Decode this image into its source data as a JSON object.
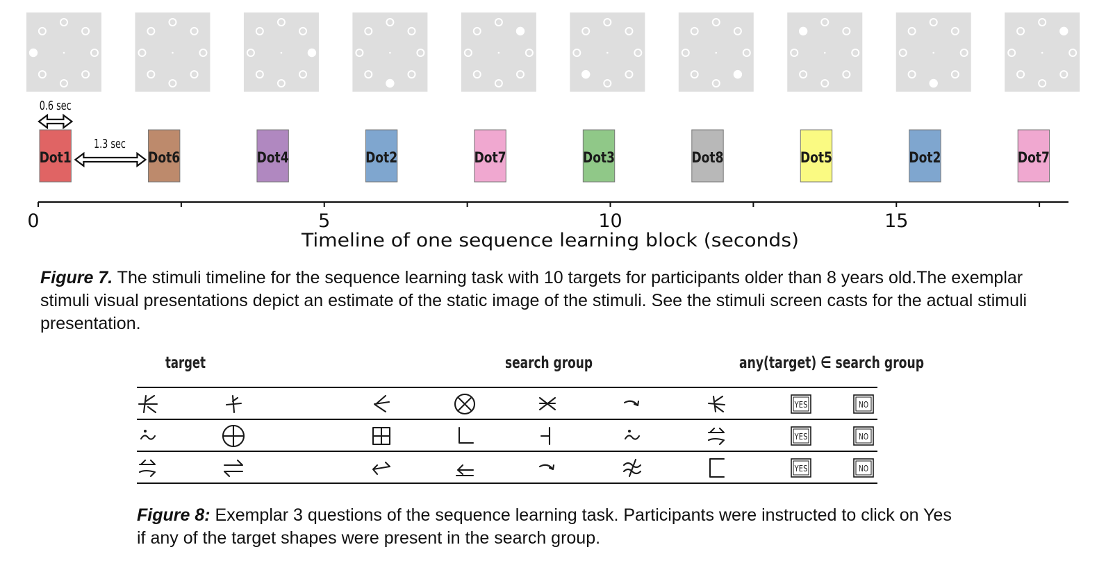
{
  "figure7": {
    "chart_data": {
      "type": "timeline",
      "xlabel": "Timeline of one sequence learning block (seconds)",
      "xlim": [
        0,
        18
      ],
      "xticks": [
        0,
        5,
        10,
        15
      ],
      "events": [
        {
          "label": "Dot1",
          "start": 0.0,
          "end": 0.6,
          "color": "#e06464"
        },
        {
          "label": "Dot6",
          "start": 1.9,
          "end": 2.5,
          "color": "#bd8a6c"
        },
        {
          "label": "Dot4",
          "start": 3.8,
          "end": 4.4,
          "color": "#b088c0"
        },
        {
          "label": "Dot2",
          "start": 5.7,
          "end": 6.3,
          "color": "#7fa6cf"
        },
        {
          "label": "Dot7",
          "start": 7.6,
          "end": 8.2,
          "color": "#f0a8d0"
        },
        {
          "label": "Dot3",
          "start": 9.5,
          "end": 10.1,
          "color": "#90c888"
        },
        {
          "label": "Dot8",
          "start": 11.4,
          "end": 12.0,
          "color": "#b8b8b8"
        },
        {
          "label": "Dot5",
          "start": 13.3,
          "end": 13.9,
          "color": "#fafa82"
        },
        {
          "label": "Dot2",
          "start": 15.2,
          "end": 15.8,
          "color": "#7fa6cf"
        },
        {
          "label": "Dot7",
          "start": 17.1,
          "end": 17.7,
          "color": "#f0a8d0"
        }
      ],
      "annotations": [
        "0.6 sec",
        "1.3 sec"
      ]
    },
    "stimuli": [
      {
        "dot": 6
      },
      {
        "dot": 8
      },
      {
        "dot": 2
      },
      {
        "dot": 4
      },
      {
        "dot": 1
      },
      {
        "dot": 5
      },
      {
        "dot": 3
      },
      {
        "dot": 7
      },
      {
        "dot": 4
      },
      {
        "dot": 1
      }
    ]
  },
  "caption7": {
    "label": "Figure 7.",
    "text": " The stimuli timeline for the sequence learning task with 10 targets for participants older than 8 years old.The exemplar stimuli visual presentations depict an estimate of the static image of the stimuli. See the stimuli screen casts for the actual stimuli presentation."
  },
  "figure8": {
    "headers": {
      "target": "target",
      "search": "search group",
      "answer": "any(target) ∈ search group"
    },
    "yes_label": "YES",
    "no_label": "NO",
    "rows": [
      [
        "sym-a",
        "sym-b",
        "sym-c",
        "circle-x",
        "sym-x",
        "arrow-hook",
        "sym-a2"
      ],
      [
        "tilde-dot",
        "circle-plus",
        "square-plus",
        "corner-l",
        "tack-left",
        "tilde-dot",
        "arrows-r"
      ],
      [
        "arrows-r",
        "arrows-lr",
        "arrow-bent",
        "arrow-back",
        "arrow-hook",
        "approx-slash",
        "bracket-open"
      ]
    ]
  },
  "caption8": {
    "label": "Figure 8:",
    "text": " Exemplar 3 questions of the sequence learning task. Participants were instructed to click on Yes if any of the target shapes were present in the search group."
  }
}
